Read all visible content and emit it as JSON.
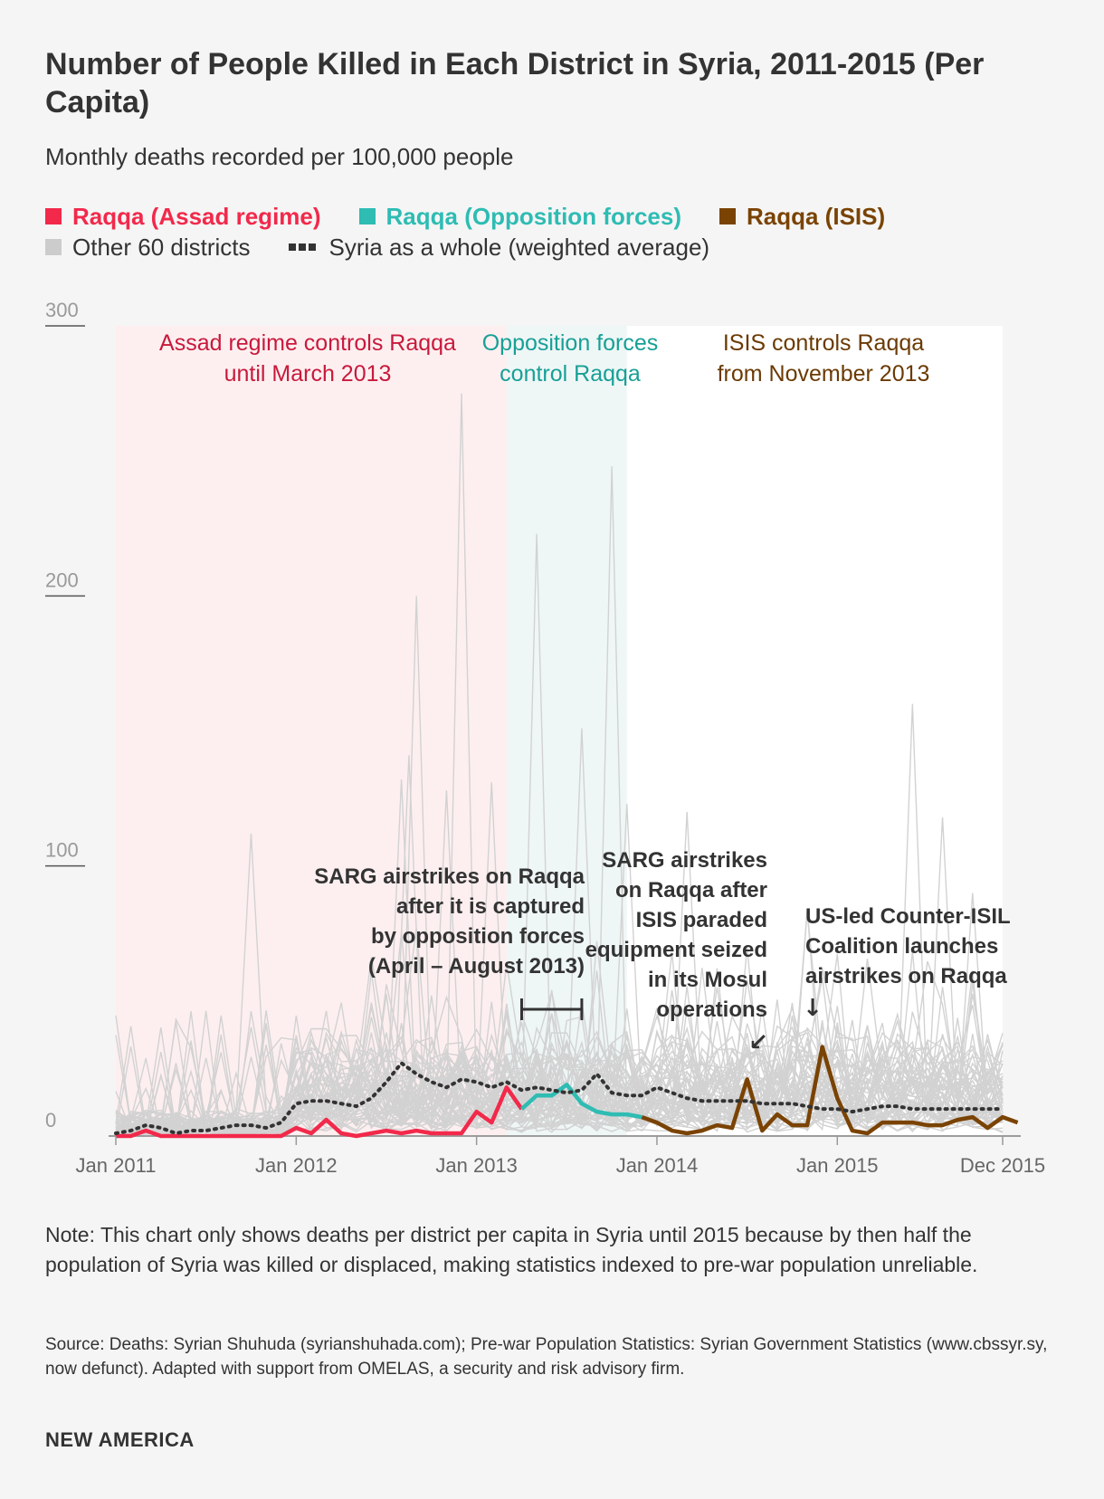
{
  "title": "Number of People Killed in Each District in Syria, 2011-2015 (Per Capita)",
  "subtitle": "Monthly deaths recorded per 100,000 people",
  "legend": {
    "assad": {
      "label": "Raqqa (Assad regime)",
      "color": "#f2294b"
    },
    "opposition": {
      "label": "Raqqa (Opposition forces)",
      "color": "#2ebcb3"
    },
    "isis": {
      "label": "Raqqa (ISIS)",
      "color": "#7a4304"
    },
    "others": {
      "label": "Other 60 districts",
      "color": "#cccccc"
    },
    "syria": {
      "label": "Syria as a whole (weighted average)",
      "color": "#333333"
    }
  },
  "chart_data": {
    "type": "line",
    "ylabel": "Monthly deaths per 100,000 people",
    "ylim": [
      0,
      300
    ],
    "yticks": [
      {
        "value": 0,
        "label": "0"
      },
      {
        "value": 100,
        "label": "100"
      },
      {
        "value": 200,
        "label": "200"
      },
      {
        "value": 300,
        "label": "300"
      }
    ],
    "xrange_months": [
      0,
      59
    ],
    "xticks": [
      {
        "month": 0,
        "label": "Jan 2011"
      },
      {
        "month": 12,
        "label": "Jan 2012"
      },
      {
        "month": 24,
        "label": "Jan 2013"
      },
      {
        "month": 36,
        "label": "Jan 2014"
      },
      {
        "month": 48,
        "label": "Jan 2015"
      },
      {
        "month": 59,
        "label": "Dec 2015"
      }
    ],
    "regions": [
      {
        "name": "assad",
        "start": 0,
        "end": 26,
        "label": "Assad regime controls Raqqa until March 2013",
        "label_lines": [
          "Assad regime controls Raqqa",
          "until March 2013"
        ],
        "color": "#fdeff0",
        "text_color": "#c8193c"
      },
      {
        "name": "opposition",
        "start": 26,
        "end": 34,
        "label": "Opposition forces control Raqqa",
        "label_lines": [
          "Opposition forces",
          "control Raqqa"
        ],
        "color": "#eff6f6",
        "text_color": "#17a096"
      },
      {
        "name": "isis",
        "start": 34,
        "end": 59,
        "label": "ISIS controls Raqqa from November 2013",
        "label_lines": [
          "ISIS controls Raqqa",
          "from November 2013"
        ],
        "color": "#ffffff",
        "text_color": "#6b3a04"
      }
    ],
    "series": [
      {
        "name": "Raqqa (Assad regime)",
        "key": "assad",
        "start_month": 0,
        "values": [
          0,
          0,
          2,
          0,
          0,
          0,
          0,
          0,
          0,
          0,
          0,
          0,
          3,
          1,
          6,
          1,
          0,
          1,
          2,
          1,
          2,
          1,
          1,
          1,
          9,
          5,
          18,
          10
        ]
      },
      {
        "name": "Raqqa (Opposition forces)",
        "key": "opposition",
        "start_month": 27,
        "values": [
          10,
          15,
          15,
          19,
          12,
          9,
          8,
          8,
          7
        ]
      },
      {
        "name": "Raqqa (ISIS)",
        "key": "isis",
        "start_month": 35,
        "values": [
          7,
          5,
          2,
          1,
          2,
          4,
          3,
          21,
          2,
          8,
          4,
          4,
          33,
          14,
          2,
          1,
          5,
          5,
          5,
          4,
          4,
          6,
          7,
          3,
          7,
          5
        ]
      },
      {
        "name": "Syria as a whole (weighted average)",
        "key": "syria",
        "start_month": 0,
        "values": [
          1,
          2,
          4,
          3,
          1,
          2,
          2,
          3,
          4,
          4,
          3,
          5,
          12,
          13,
          13,
          12,
          11,
          14,
          20,
          27,
          23,
          20,
          18,
          21,
          20,
          18,
          20,
          17,
          18,
          17,
          16,
          17,
          23,
          16,
          15,
          15,
          18,
          16,
          14,
          13,
          13,
          13,
          13,
          12,
          12,
          12,
          11,
          10,
          10,
          9,
          10,
          11,
          11,
          10,
          10,
          10,
          10,
          10,
          10,
          10
        ]
      }
    ],
    "gray_peaks": [
      {
        "month": 9,
        "value": 112
      },
      {
        "month": 19,
        "value": 132
      },
      {
        "month": 19.5,
        "value": 141
      },
      {
        "month": 20,
        "value": 200
      },
      {
        "month": 22,
        "value": 128
      },
      {
        "month": 23,
        "value": 275
      },
      {
        "month": 25,
        "value": 131
      },
      {
        "month": 28,
        "value": 223
      },
      {
        "month": 31,
        "value": 151
      },
      {
        "month": 33,
        "value": 248
      },
      {
        "month": 34,
        "value": 123
      },
      {
        "month": 38,
        "value": 120
      },
      {
        "month": 42,
        "value": 70
      },
      {
        "month": 46,
        "value": 84
      },
      {
        "month": 53,
        "value": 160
      },
      {
        "month": 55,
        "value": 118
      },
      {
        "month": 57,
        "value": 90
      }
    ],
    "annotations": [
      {
        "key": "a1",
        "lines": [
          "SARG airstrikes on Raqqa",
          "after it is captured",
          "by opposition forces",
          "(April – August 2013)"
        ]
      },
      {
        "key": "a2",
        "lines": [
          "SARG airstrikes",
          "on Raqqa after",
          "ISIS paraded",
          "equipment seized",
          "in its Mosul",
          "operations"
        ],
        "arrow": "↙"
      },
      {
        "key": "a3",
        "lines": [
          "US-led Counter-ISIL",
          "Coalition launches",
          "airstrikes on Raqqa"
        ],
        "arrow": "↓"
      }
    ]
  },
  "note": "Note: This chart only shows deaths per district per capita in Syria until 2015 because by then half the population of Syria was killed or displaced, making statistics indexed to pre-war population unreliable.",
  "source": "Source: Deaths: Syrian Shuhuda (syrianshuhada.com); Pre-war Population Statistics: Syrian Government Statistics (www.cbssyr.sy, now defunct). Adapted with support from OMELAS, a security and risk advisory firm.",
  "brand": "NEW AMERICA"
}
